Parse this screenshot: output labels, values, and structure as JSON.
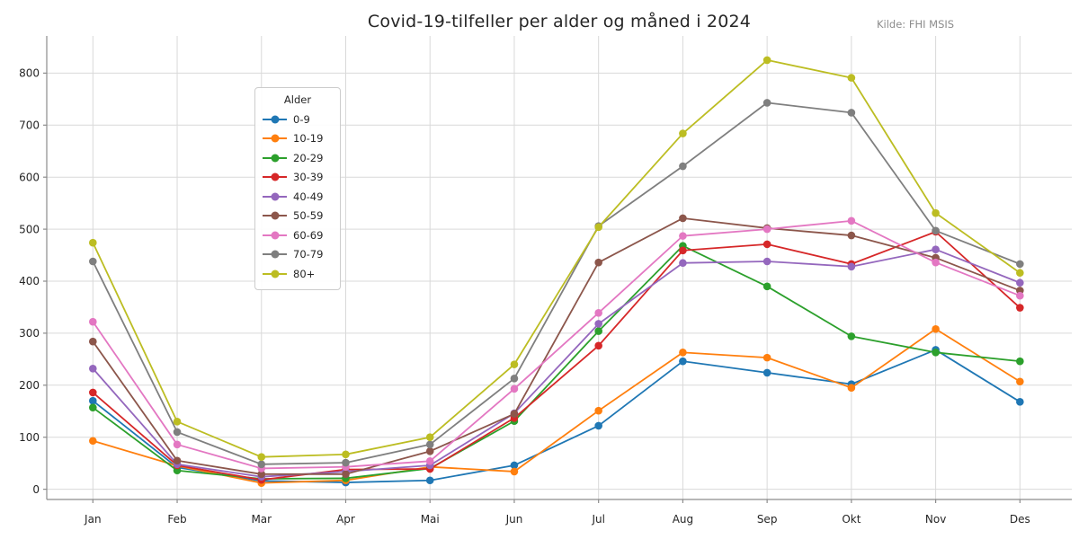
{
  "chart_data": {
    "type": "line",
    "title": "Covid-19-tilfeller per alder og måned i 2024",
    "source": "Kilde: FHI MSIS",
    "legend_title": "Alder",
    "legend_position": "upper-left-inside",
    "grid": true,
    "x": [
      "Jan",
      "Feb",
      "Mar",
      "Apr",
      "Mai",
      "Jun",
      "Jul",
      "Aug",
      "Sep",
      "Okt",
      "Nov",
      "Des"
    ],
    "yticks": [
      0,
      100,
      200,
      300,
      400,
      500,
      600,
      700,
      800
    ],
    "ylim": [
      -20,
      872
    ],
    "xlabel": "",
    "ylabel": "",
    "series": [
      {
        "name": "0-9",
        "color": "#1f77b4",
        "values": [
          170,
          42,
          16,
          13,
          17,
          46,
          122,
          246,
          224,
          202,
          268,
          168
        ]
      },
      {
        "name": "10-19",
        "color": "#ff7f0e",
        "values": [
          93,
          45,
          12,
          17,
          43,
          34,
          151,
          263,
          253,
          195,
          308,
          207
        ]
      },
      {
        "name": "20-29",
        "color": "#2ca02c",
        "values": [
          157,
          36,
          20,
          21,
          40,
          131,
          304,
          468,
          390,
          294,
          263,
          246
        ]
      },
      {
        "name": "30-39",
        "color": "#d62728",
        "values": [
          186,
          46,
          18,
          38,
          39,
          137,
          276,
          459,
          471,
          433,
          495,
          349
        ]
      },
      {
        "name": "40-49",
        "color": "#9467bd",
        "values": [
          232,
          48,
          24,
          34,
          46,
          146,
          318,
          435,
          438,
          428,
          461,
          397
        ]
      },
      {
        "name": "50-59",
        "color": "#8c564b",
        "values": [
          284,
          55,
          29,
          29,
          73,
          145,
          436,
          521,
          502,
          488,
          445,
          382
        ]
      },
      {
        "name": "60-69",
        "color": "#e377c2",
        "values": [
          322,
          86,
          40,
          43,
          54,
          193,
          339,
          487,
          500,
          516,
          436,
          372
        ]
      },
      {
        "name": "70-79",
        "color": "#7f7f7f",
        "values": [
          438,
          110,
          48,
          51,
          86,
          213,
          506,
          621,
          743,
          724,
          497,
          433
        ]
      },
      {
        "name": "80+",
        "color": "#bcbd22",
        "values": [
          474,
          130,
          62,
          67,
          100,
          240,
          504,
          684,
          825,
          791,
          531,
          416
        ]
      }
    ],
    "colors": {
      "text": "#262626",
      "muted_text": "#8c8c8c",
      "grid": "#d9d9d9",
      "spine": "#8c8c8c",
      "background": "#ffffff"
    }
  }
}
